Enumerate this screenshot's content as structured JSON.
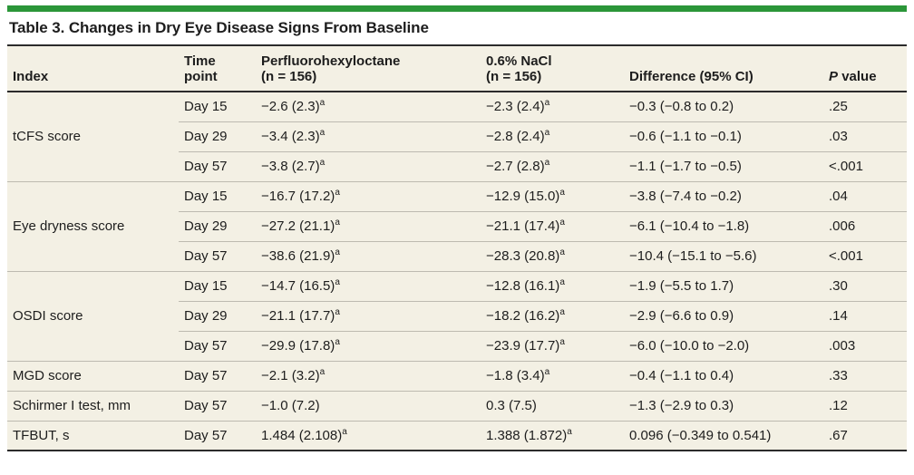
{
  "colors": {
    "accent_bar": "#2b9639",
    "heavy_rule": "#2b2b2b",
    "row_divider": "#bdbab0",
    "table_background": "#f3f0e4",
    "text": "#1d1d1d"
  },
  "title": "Table 3. Changes in Dry Eye Disease Signs From Baseline",
  "header": {
    "index": "Index",
    "time_l1": "Time",
    "time_l2": "point",
    "pfho_l1": "Perfluorohexyloctane",
    "pfho_l2": "(n = 156)",
    "nacl_l1": "0.6% NaCl",
    "nacl_l2": "(n = 156)",
    "diff": "Difference (95% CI)",
    "p_italic": "P",
    "p_label": "value"
  },
  "groups": [
    {
      "index": "tCFS score",
      "rows": [
        {
          "time": "Day 15",
          "pfho": "−2.6 (2.3)",
          "pfho_sup": "a",
          "nacl": "−2.3 (2.4)",
          "nacl_sup": "a",
          "diff": "−0.3 (−0.8 to 0.2)",
          "p": ".25"
        },
        {
          "time": "Day 29",
          "pfho": "−3.4 (2.3)",
          "pfho_sup": "a",
          "nacl": "−2.8 (2.4)",
          "nacl_sup": "a",
          "diff": "−0.6 (−1.1 to −0.1)",
          "p": ".03"
        },
        {
          "time": "Day 57",
          "pfho": "−3.8 (2.7)",
          "pfho_sup": "a",
          "nacl": "−2.7 (2.8)",
          "nacl_sup": "a",
          "diff": "−1.1 (−1.7 to −0.5)",
          "p": "<.001"
        }
      ]
    },
    {
      "index": "Eye dryness score",
      "rows": [
        {
          "time": "Day 15",
          "pfho": "−16.7 (17.2)",
          "pfho_sup": "a",
          "nacl": "−12.9 (15.0)",
          "nacl_sup": "a",
          "diff": "−3.8 (−7.4 to −0.2)",
          "p": ".04"
        },
        {
          "time": "Day 29",
          "pfho": "−27.2 (21.1)",
          "pfho_sup": "a",
          "nacl": "−21.1 (17.4)",
          "nacl_sup": "a",
          "diff": "−6.1 (−10.4 to −1.8)",
          "p": ".006"
        },
        {
          "time": "Day 57",
          "pfho": "−38.6 (21.9)",
          "pfho_sup": "a",
          "nacl": "−28.3 (20.8)",
          "nacl_sup": "a",
          "diff": "−10.4 (−15.1 to −5.6)",
          "p": "<.001"
        }
      ]
    },
    {
      "index": "OSDI score",
      "rows": [
        {
          "time": "Day 15",
          "pfho": "−14.7 (16.5)",
          "pfho_sup": "a",
          "nacl": "−12.8 (16.1)",
          "nacl_sup": "a",
          "diff": "−1.9 (−5.5 to 1.7)",
          "p": ".30"
        },
        {
          "time": "Day 29",
          "pfho": "−21.1 (17.7)",
          "pfho_sup": "a",
          "nacl": "−18.2 (16.2)",
          "nacl_sup": "a",
          "diff": "−2.9 (−6.6 to 0.9)",
          "p": ".14"
        },
        {
          "time": "Day 57",
          "pfho": "−29.9 (17.8)",
          "pfho_sup": "a",
          "nacl": "−23.9 (17.7)",
          "nacl_sup": "a",
          "diff": "−6.0 (−10.0 to −2.0)",
          "p": ".003"
        }
      ]
    },
    {
      "index": "MGD score",
      "rows": [
        {
          "time": "Day 57",
          "pfho": "−2.1 (3.2)",
          "pfho_sup": "a",
          "nacl": "−1.8 (3.4)",
          "nacl_sup": "a",
          "diff": "−0.4 (−1.1 to 0.4)",
          "p": ".33"
        }
      ]
    },
    {
      "index": "Schirmer I test, mm",
      "rows": [
        {
          "time": "Day 57",
          "pfho": "−1.0 (7.2)",
          "nacl": "0.3 (7.5)",
          "diff": "−1.3 (−2.9 to 0.3)",
          "p": ".12"
        }
      ]
    },
    {
      "index": "TFBUT, s",
      "rows": [
        {
          "time": "Day 57",
          "pfho": "1.484 (2.108)",
          "pfho_sup": "a",
          "nacl": "1.388 (1.872)",
          "nacl_sup": "a",
          "diff": "0.096 (−0.349 to 0.541)",
          "p": ".67"
        }
      ]
    }
  ]
}
